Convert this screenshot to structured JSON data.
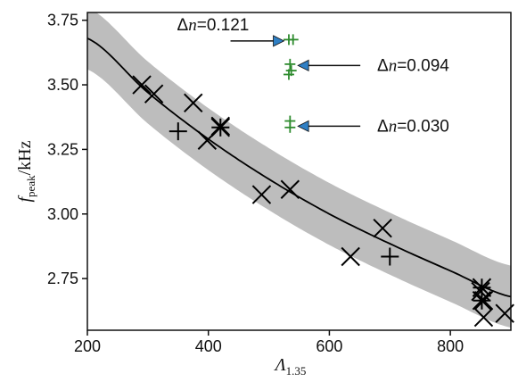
{
  "chart_data": {
    "type": "scatter",
    "xlabel_sym": "Λ",
    "xlabel_sub": "1.35",
    "ylabel_sym": "f",
    "ylabel_sub": "peak",
    "ylabel_unit": "/kHz",
    "xlim": [
      200,
      900
    ],
    "ylim": [
      2.55,
      3.78
    ],
    "xticks": [
      200,
      400,
      600,
      800
    ],
    "yticks": [
      2.75,
      3.0,
      3.25,
      3.5,
      3.75
    ],
    "ytick_labels": [
      "2.75",
      "3.00",
      "3.25",
      "3.50",
      "3.75"
    ],
    "fit_curve": {
      "x": [
        200,
        300,
        400,
        500,
        600,
        700,
        800,
        900
      ],
      "y": [
        3.68,
        3.47,
        3.29,
        3.135,
        3.0,
        2.885,
        2.78,
        2.68
      ],
      "band_halfwidth": 0.12,
      "band_color": "#bdbdbd",
      "line_color": "#000000"
    },
    "series": [
      {
        "marker": "x",
        "color": "#000000",
        "points": [
          [
            290,
            3.5
          ],
          [
            310,
            3.465
          ],
          [
            375,
            3.43
          ],
          [
            398,
            3.285
          ],
          [
            420,
            3.34
          ],
          [
            488,
            3.075
          ],
          [
            535,
            3.095
          ],
          [
            635,
            2.835
          ],
          [
            688,
            2.945
          ],
          [
            850,
            2.7
          ],
          [
            855,
            2.665
          ],
          [
            855,
            2.6
          ],
          [
            890,
            2.615
          ]
        ]
      },
      {
        "marker": "+",
        "color": "#000000",
        "points": [
          [
            350,
            3.32
          ],
          [
            700,
            2.835
          ]
        ]
      },
      {
        "marker": "*",
        "color": "#000000",
        "points": [
          [
            420,
            3.335
          ],
          [
            852,
            2.715
          ],
          [
            852,
            2.665
          ]
        ]
      },
      {
        "marker": "+",
        "color": "#2e8b2e",
        "points": [
          [
            533,
            3.675
          ],
          [
            540,
            3.675
          ],
          [
            535,
            3.58
          ],
          [
            537,
            3.555
          ],
          [
            533,
            3.54
          ],
          [
            535,
            3.36
          ],
          [
            535,
            3.335
          ]
        ]
      }
    ],
    "annotations": [
      {
        "label": "Δn=0.121",
        "target": [
          525,
          3.67
        ],
        "side": "left"
      },
      {
        "label": "Δn=0.094",
        "target": [
          548,
          3.575
        ],
        "side": "right"
      },
      {
        "label": "Δn=0.030",
        "target": [
          548,
          3.34
        ],
        "side": "right"
      }
    ],
    "arrow_fill": "#2f7fc4"
  }
}
